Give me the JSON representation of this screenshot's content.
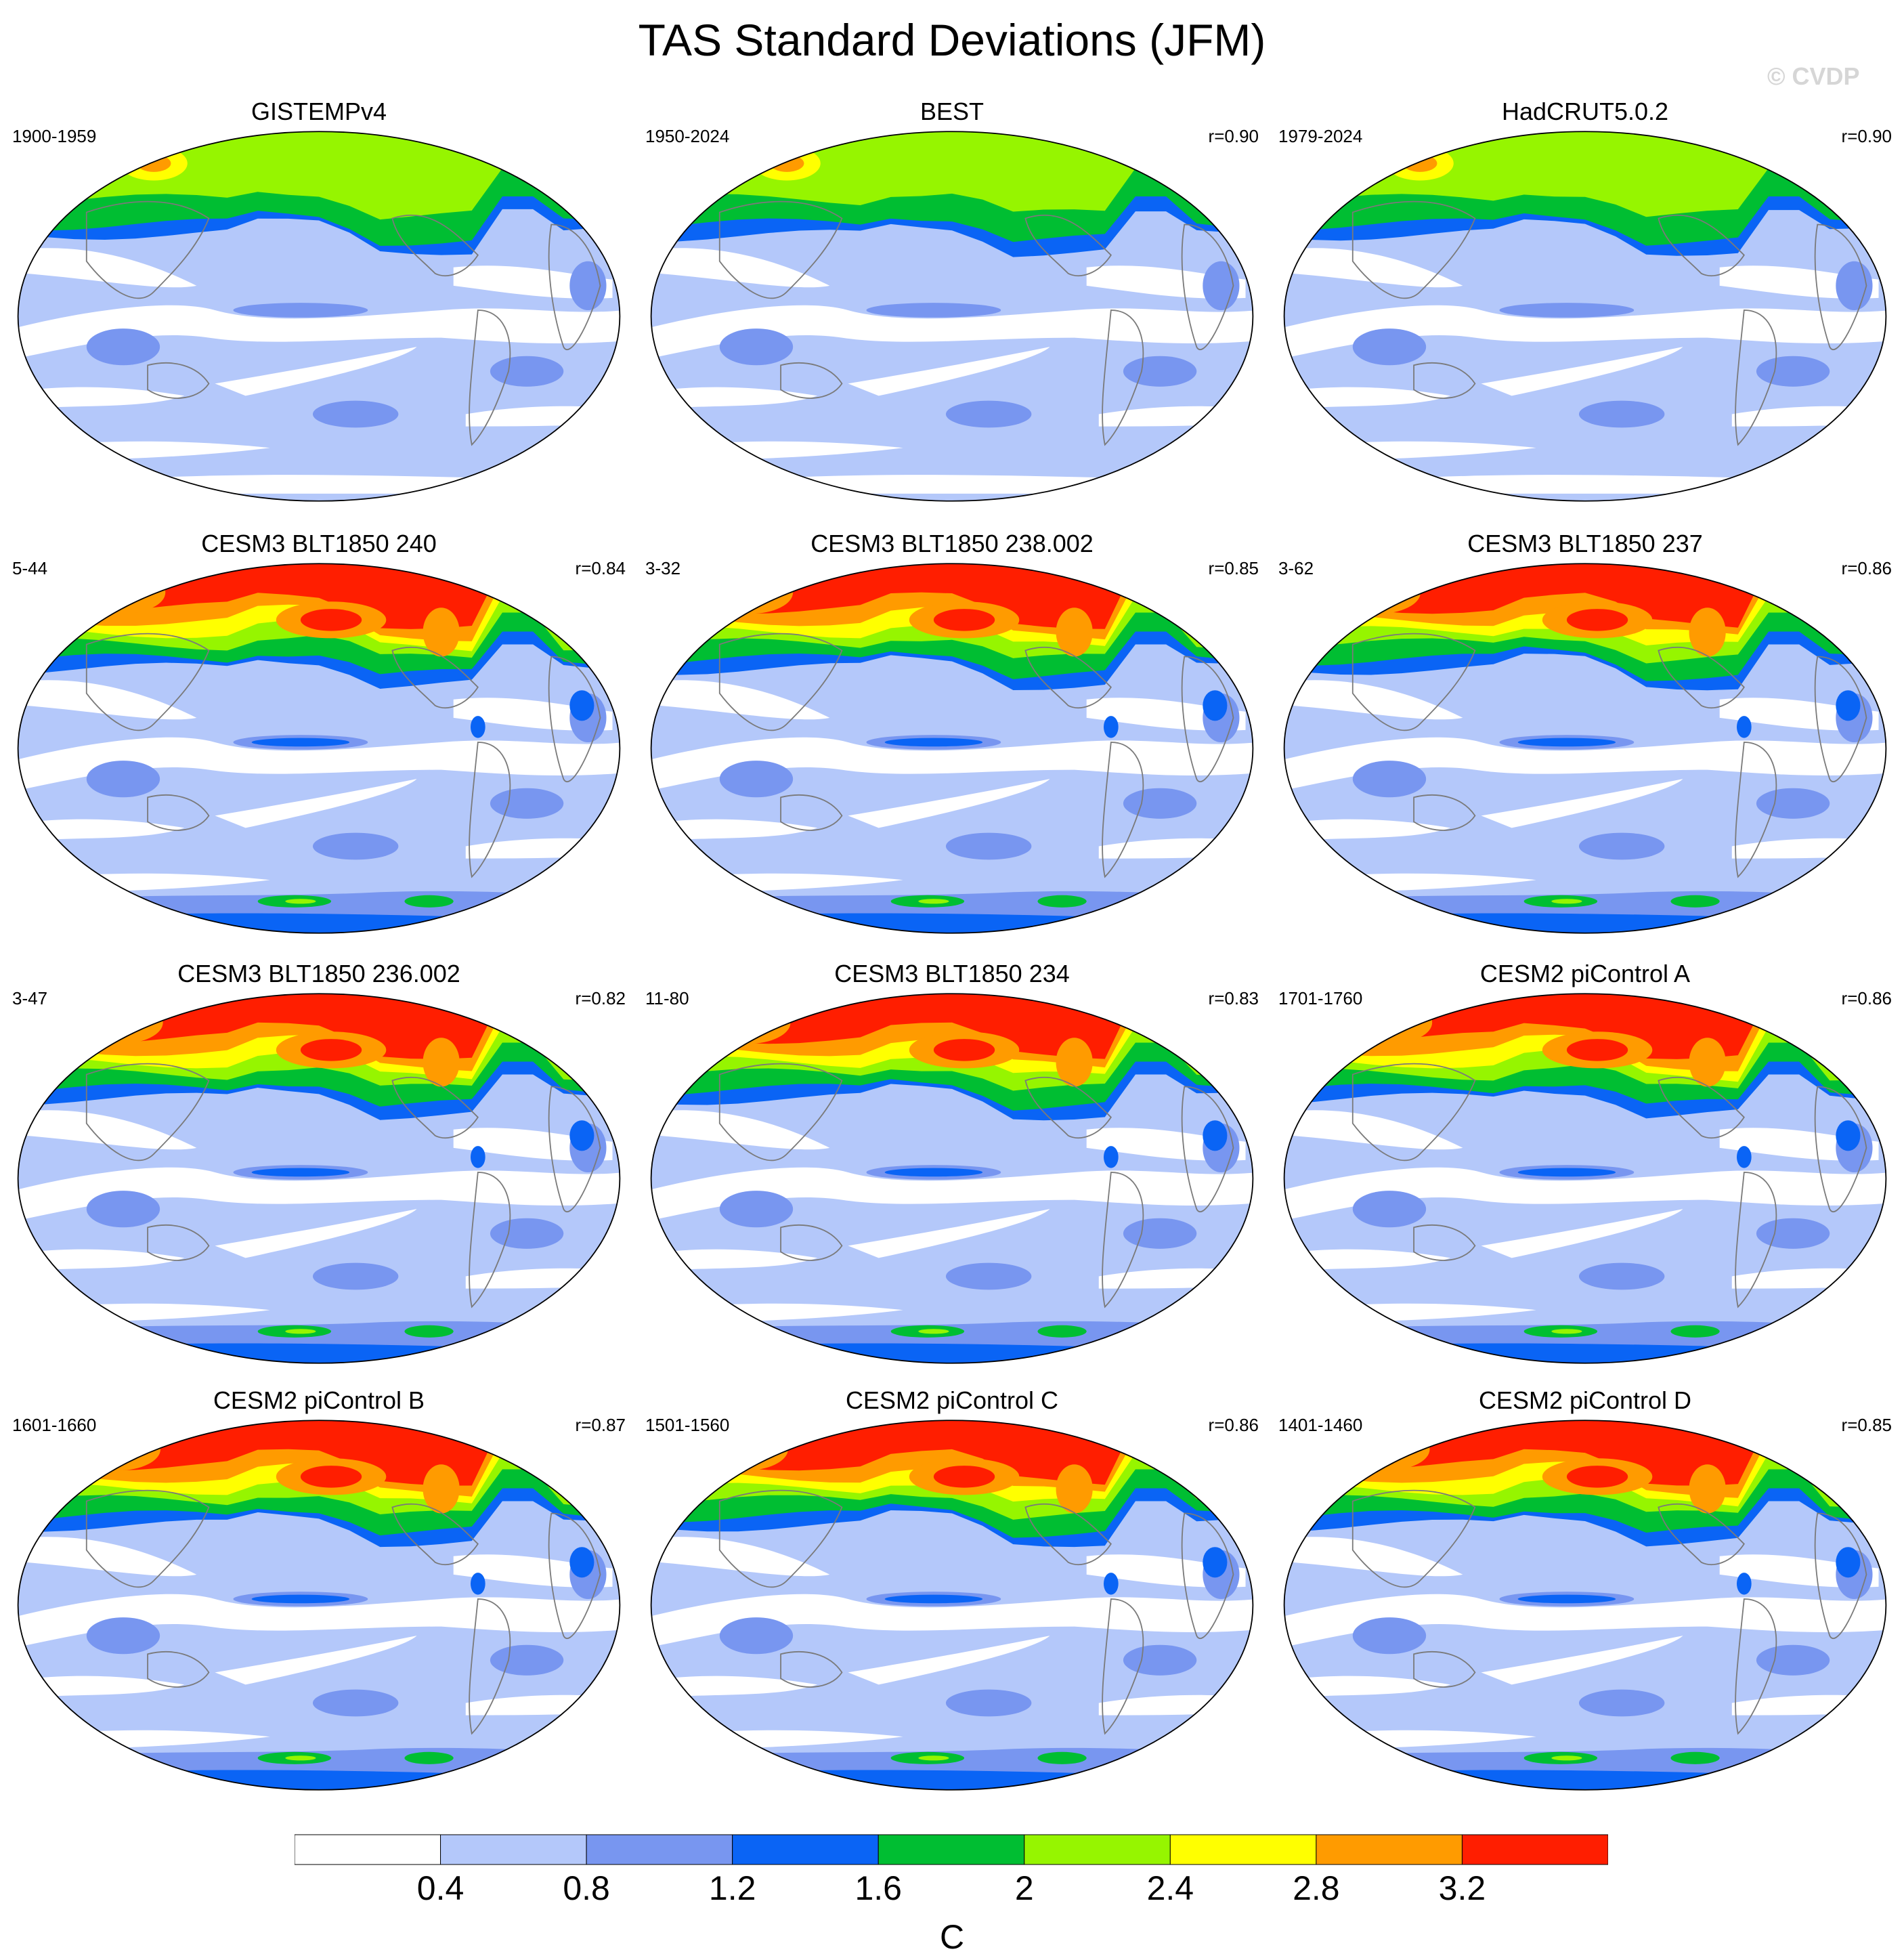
{
  "title": "TAS Standard Deviations (JFM)",
  "watermark": "© CVDP",
  "panels": [
    {
      "title": "GISTEMPv4",
      "period": "1900-1959",
      "r": ""
    },
    {
      "title": "BEST",
      "period": "1950-2024",
      "r": "r=0.90"
    },
    {
      "title": "HadCRUT5.0.2",
      "period": "1979-2024",
      "r": "r=0.90"
    },
    {
      "title": "CESM3 BLT1850 240",
      "period": "5-44",
      "r": "r=0.84"
    },
    {
      "title": "CESM3 BLT1850 238.002",
      "period": "3-32",
      "r": "r=0.85"
    },
    {
      "title": "CESM3 BLT1850 237",
      "period": "3-62",
      "r": "r=0.86"
    },
    {
      "title": "CESM3 BLT1850 236.002",
      "period": "3-47",
      "r": "r=0.82"
    },
    {
      "title": "CESM3 BLT1850 234",
      "period": "11-80",
      "r": "r=0.83"
    },
    {
      "title": "CESM2 piControl A",
      "period": "1701-1760",
      "r": "r=0.86"
    },
    {
      "title": "CESM2 piControl B",
      "period": "1601-1660",
      "r": "r=0.87"
    },
    {
      "title": "CESM2 piControl C",
      "period": "1501-1560",
      "r": "r=0.86"
    },
    {
      "title": "CESM2 piControl D",
      "period": "1401-1460",
      "r": "r=0.85"
    }
  ],
  "colorbar": {
    "labels": [
      "0.4",
      "0.8",
      "1.2",
      "1.6",
      "2",
      "2.4",
      "2.8",
      "3.2"
    ],
    "colors": [
      "#ffffff",
      "#b4c8fa",
      "#7896f0",
      "#0a64f5",
      "#00be32",
      "#96f500",
      "#ffff00",
      "#ff9b00",
      "#ff1e00"
    ],
    "units": "C"
  }
}
